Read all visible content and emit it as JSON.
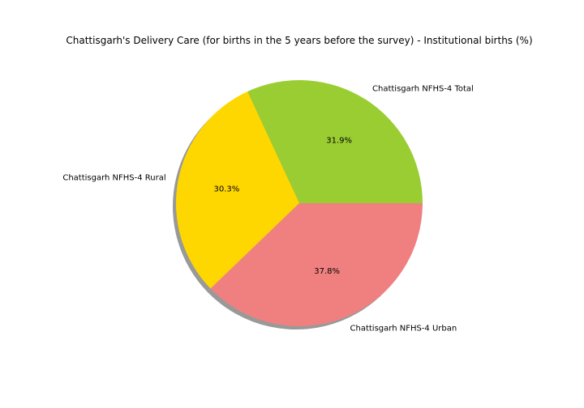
{
  "chart_data": {
    "type": "pie",
    "title": "Chattisgarh's Delivery Care (for births in the 5 years before the survey) - Institutional births (%)",
    "shadow": true,
    "start_angle_deg": 0,
    "direction": "counterclockwise",
    "slices": [
      {
        "label": "Chattisgarh NFHS-4 Total",
        "value": 31.9,
        "pct_text": "31.9%",
        "color": "#9acd32"
      },
      {
        "label": "Chattisgarh NFHS-4 Rural",
        "value": 30.3,
        "pct_text": "30.3%",
        "color": "#ffd700"
      },
      {
        "label": "Chattisgarh NFHS-4 Urban",
        "value": 37.8,
        "pct_text": "37.8%",
        "color": "#f08080"
      }
    ]
  }
}
